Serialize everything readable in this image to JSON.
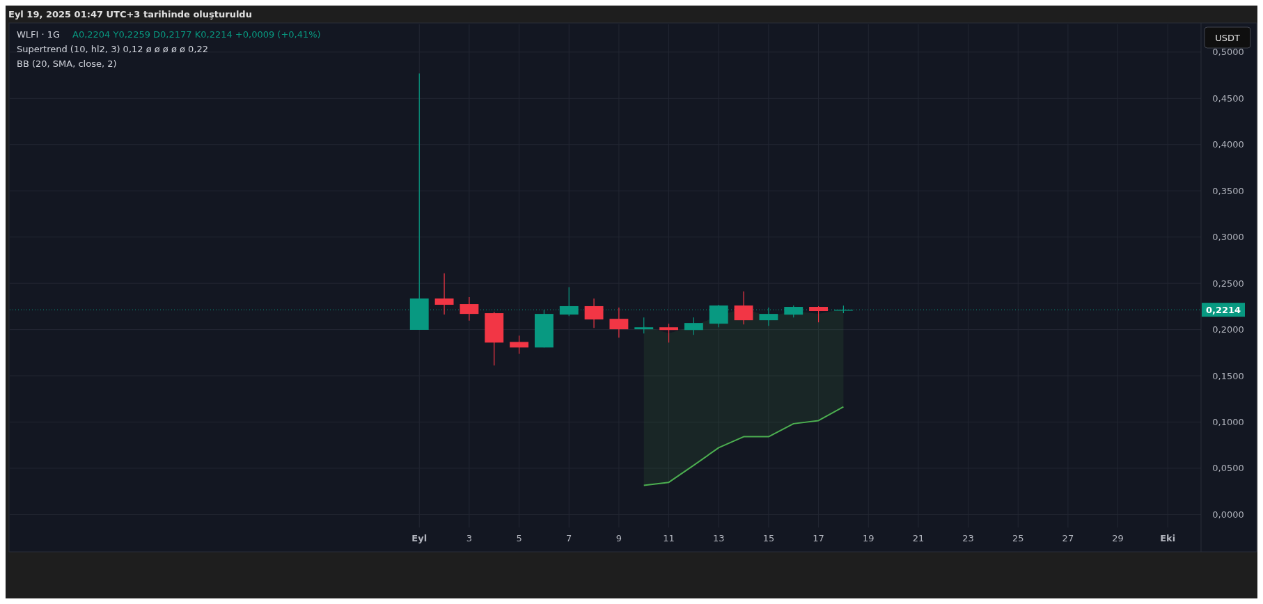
{
  "chart_data": {
    "type": "candlestick",
    "title": "WLFI · 1G",
    "subtitle": "A0,2204  Y0,2259  D0,2177  K0,2214  +0,0009 (+0,41%)",
    "ylabel": "USDT",
    "annotations": [
      "Eyl 19, 2025 01:47 UTC+3 tarihinde oluşturuldu",
      "Supertrend (10, hl2, 3)  0,12  ø  ø  ø  ø  ø  0,22",
      "BB (20, SMA, close, 2)"
    ],
    "x": [
      "2025-09-01",
      "2025-09-02",
      "2025-09-03",
      "2025-09-04",
      "2025-09-05",
      "2025-09-06",
      "2025-09-07",
      "2025-09-08",
      "2025-09-09",
      "2025-09-10",
      "2025-09-11",
      "2025-09-12",
      "2025-09-13",
      "2025-09-14",
      "2025-09-15",
      "2025-09-16",
      "2025-09-17",
      "2025-09-18"
    ],
    "ohlc": [
      [
        0.1997,
        0.477,
        0.1997,
        0.2336
      ],
      [
        0.2336,
        0.2609,
        0.2162,
        0.2268
      ],
      [
        0.2275,
        0.2351,
        0.2096,
        0.2169
      ],
      [
        0.2177,
        0.2192,
        0.1611,
        0.1859
      ],
      [
        0.1866,
        0.1934,
        0.1737,
        0.1806
      ],
      [
        0.1806,
        0.2212,
        0.1806,
        0.2169
      ],
      [
        0.2162,
        0.2457,
        0.2146,
        0.2253
      ],
      [
        0.2253,
        0.2336,
        0.2018,
        0.2109
      ],
      [
        0.2116,
        0.2237,
        0.1912,
        0.2003
      ],
      [
        0.2003,
        0.2131,
        0.1957,
        0.2025
      ],
      [
        0.2025,
        0.2063,
        0.1859,
        0.1995
      ],
      [
        0.1995,
        0.2131,
        0.1942,
        0.2071
      ],
      [
        0.2063,
        0.2268,
        0.2025,
        0.226
      ],
      [
        0.226,
        0.2412,
        0.2056,
        0.2101
      ],
      [
        0.2101,
        0.2237,
        0.204,
        0.2169
      ],
      [
        0.2161,
        0.226,
        0.2131,
        0.2245
      ],
      [
        0.2245,
        0.2253,
        0.2078,
        0.22
      ],
      [
        0.2204,
        0.2259,
        0.2177,
        0.2214
      ]
    ],
    "colors": [
      "#089981",
      "#f23645",
      "#f23645",
      "#f23645",
      "#f23645",
      "#089981",
      "#089981",
      "#f23645",
      "#f23645",
      "#089981",
      "#f23645",
      "#089981",
      "#089981",
      "#f23645",
      "#089981",
      "#089981",
      "#f23645",
      "#089981"
    ],
    "series": [
      {
        "type": "line",
        "color": "#4caf50",
        "x": [
          "2025-09-10",
          "2025-09-11",
          "2025-09-12",
          "2025-09-13",
          "2025-09-14",
          "2025-09-15",
          "2025-09-16",
          "2025-09-17",
          "2025-09-18"
        ],
        "values": [
          0.0316,
          0.0348,
          0.0533,
          0.0722,
          0.0841,
          0.0841,
          0.0982,
          0.1015,
          0.1164
        ],
        "lower": [
          0.0316,
          0.0348,
          0.0533,
          0.0722,
          0.0841,
          0.0841,
          0.0982,
          0.1015,
          0.1164
        ],
        "upper": [
          0.204,
          0.196,
          0.204,
          0.215,
          0.223,
          0.214,
          0.22,
          0.217,
          0.222
        ]
      }
    ],
    "xlim": [
      "2025-08-15T14:00",
      "2025-10-02T08:00"
    ],
    "xticks": [
      {
        "value": "2025-09-01",
        "label": "Eyl"
      },
      {
        "value": "2025-09-03",
        "label": "3"
      },
      {
        "value": "2025-09-05",
        "label": "5"
      },
      {
        "value": "2025-09-07",
        "label": "7"
      },
      {
        "value": "2025-09-09",
        "label": "9"
      },
      {
        "value": "2025-09-11",
        "label": "11"
      },
      {
        "value": "2025-09-13",
        "label": "13"
      },
      {
        "value": "2025-09-15",
        "label": "15"
      },
      {
        "value": "2025-09-17",
        "label": "17"
      },
      {
        "value": "2025-09-19",
        "label": "19"
      },
      {
        "value": "2025-09-21",
        "label": "21"
      },
      {
        "value": "2025-09-23",
        "label": "23"
      },
      {
        "value": "2025-09-25",
        "label": "25"
      },
      {
        "value": "2025-09-27",
        "label": "27"
      },
      {
        "value": "2025-09-29",
        "label": "29"
      },
      {
        "value": "2025-10-01",
        "label": "Eki"
      }
    ],
    "ylim": [
      -0.014,
      0.53
    ],
    "yticks": [
      {
        "value": 0,
        "label": "0,0000"
      },
      {
        "value": 0.05,
        "label": "0,0500"
      },
      {
        "value": 0.1,
        "label": "0,1000"
      },
      {
        "value": 0.15,
        "label": "0,1500"
      },
      {
        "value": 0.2,
        "label": "0,2000"
      },
      {
        "value": 0.25,
        "label": "0,2500"
      },
      {
        "value": 0.3,
        "label": "0,3000"
      },
      {
        "value": 0.35,
        "label": "0,3500"
      },
      {
        "value": 0.4,
        "label": "0,4000"
      },
      {
        "value": 0.45,
        "label": "0,4500"
      },
      {
        "value": 0.5,
        "label": "0,5000"
      }
    ],
    "ref_lines": [
      {
        "axis": "y",
        "value": 0.2214,
        "label": "0,2214",
        "color": "#089981",
        "line_style": "dotted"
      }
    ],
    "grid": true
  }
}
